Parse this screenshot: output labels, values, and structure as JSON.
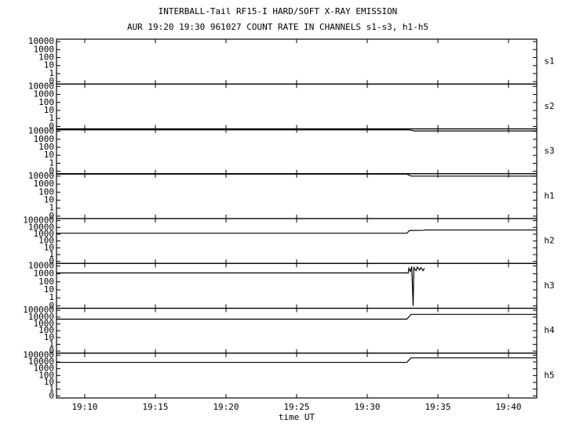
{
  "chart_data": [
    {
      "type": "line",
      "title": "INTERBALL-Tail RF15-I HARD/SOFT X-RAY EMISSION",
      "subtitle": "AUR 19:20 19:30 961027  COUNT RATE IN CHANNELS s1-s3, h1-h5",
      "name": "s1",
      "log_scale": true,
      "color": "#000000",
      "xlim": [
        1148,
        1182
      ],
      "xticks": [
        {
          "value": 1150,
          "label": "19:10"
        },
        {
          "value": 1155,
          "label": "19:15"
        },
        {
          "value": 1160,
          "label": "19:20"
        },
        {
          "value": 1165,
          "label": "19:25"
        },
        {
          "value": 1170,
          "label": "19:30"
        },
        {
          "value": 1175,
          "label": "19:35"
        },
        {
          "value": 1180,
          "label": "19:40"
        }
      ],
      "ylim": [
        0.05,
        20000
      ],
      "yticks": [
        {
          "value": 0.1,
          "label": "0"
        },
        1,
        10,
        100,
        1000,
        10000
      ],
      "x": [],
      "values": []
    },
    {
      "type": "line",
      "name": "s2",
      "log_scale": true,
      "color": "#000000",
      "xlim": [
        1148,
        1182
      ],
      "xticks": [
        {
          "value": 1150,
          "label": "19:10"
        },
        {
          "value": 1155,
          "label": "19:15"
        },
        {
          "value": 1160,
          "label": "19:20"
        },
        {
          "value": 1165,
          "label": "19:25"
        },
        {
          "value": 1170,
          "label": "19:30"
        },
        {
          "value": 1175,
          "label": "19:35"
        },
        {
          "value": 1180,
          "label": "19:40"
        }
      ],
      "ylim": [
        0.05,
        20000
      ],
      "yticks": [
        {
          "value": 0.1,
          "label": "0"
        },
        1,
        10,
        100,
        1000,
        10000
      ],
      "x": [],
      "values": []
    },
    {
      "type": "line",
      "name": "s3",
      "log_scale": true,
      "color": "#000000",
      "xlim": [
        1148,
        1182
      ],
      "xticks": [
        {
          "value": 1150,
          "label": "19:10"
        },
        {
          "value": 1155,
          "label": "19:15"
        },
        {
          "value": 1160,
          "label": "19:20"
        },
        {
          "value": 1165,
          "label": "19:25"
        },
        {
          "value": 1170,
          "label": "19:30"
        },
        {
          "value": 1175,
          "label": "19:35"
        },
        {
          "value": 1180,
          "label": "19:40"
        }
      ],
      "ylim": [
        0.05,
        20000
      ],
      "yticks": [
        {
          "value": 0.1,
          "label": "0"
        },
        1,
        10,
        100,
        1000,
        10000
      ],
      "x": [
        1148,
        1173,
        1173.3,
        1182
      ],
      "values": [
        15000,
        15000,
        11000,
        11000
      ]
    },
    {
      "type": "line",
      "name": "h1",
      "log_scale": true,
      "color": "#000000",
      "xlim": [
        1148,
        1182
      ],
      "xticks": [
        {
          "value": 1150,
          "label": "19:10"
        },
        {
          "value": 1155,
          "label": "19:15"
        },
        {
          "value": 1160,
          "label": "19:20"
        },
        {
          "value": 1165,
          "label": "19:25"
        },
        {
          "value": 1170,
          "label": "19:30"
        },
        {
          "value": 1175,
          "label": "19:35"
        },
        {
          "value": 1180,
          "label": "19:40"
        }
      ],
      "ylim": [
        0.05,
        20000
      ],
      "yticks": [
        {
          "value": 0.1,
          "label": "0"
        },
        1,
        10,
        100,
        1000,
        10000
      ],
      "x": [
        1148,
        1172.8,
        1173.1,
        1182
      ],
      "values": [
        18000,
        18000,
        10000,
        10000
      ]
    },
    {
      "type": "line",
      "name": "h2",
      "log_scale": true,
      "color": "#000000",
      "xlim": [
        1148,
        1182
      ],
      "xticks": [
        {
          "value": 1150,
          "label": "19:10"
        },
        {
          "value": 1155,
          "label": "19:15"
        },
        {
          "value": 1160,
          "label": "19:20"
        },
        {
          "value": 1165,
          "label": "19:25"
        },
        {
          "value": 1170,
          "label": "19:30"
        },
        {
          "value": 1175,
          "label": "19:35"
        },
        {
          "value": 1180,
          "label": "19:40"
        }
      ],
      "ylim": [
        0.05,
        200000
      ],
      "yticks": [
        {
          "value": 0.1,
          "label": "0"
        },
        1,
        10,
        100,
        1000,
        10000,
        100000
      ],
      "x": [
        1148,
        1172.8,
        1173.0,
        1174.0,
        1174.1,
        1182
      ],
      "values": [
        1400,
        1400,
        3500,
        3800,
        4200,
        4200
      ]
    },
    {
      "type": "line",
      "name": "h3",
      "log_scale": true,
      "color": "#000000",
      "xlim": [
        1148,
        1182
      ],
      "xticks": [
        {
          "value": 1150,
          "label": "19:10"
        },
        {
          "value": 1155,
          "label": "19:15"
        },
        {
          "value": 1160,
          "label": "19:20"
        },
        {
          "value": 1165,
          "label": "19:25"
        },
        {
          "value": 1170,
          "label": "19:30"
        },
        {
          "value": 1175,
          "label": "19:35"
        },
        {
          "value": 1180,
          "label": "19:40"
        }
      ],
      "ylim": [
        0.05,
        20000
      ],
      "yticks": [
        {
          "value": 0.1,
          "label": "0"
        },
        1,
        10,
        100,
        1000,
        10000
      ],
      "x": [
        1148,
        1172.9,
        1172.95,
        1173.05,
        1173.15,
        1173.25,
        1173.3,
        1173.45,
        1173.55,
        1173.7,
        1173.8,
        1173.95,
        1174.05
      ],
      "values": [
        1300,
        1300,
        5000,
        2000,
        8000,
        0.1,
        6000,
        2500,
        7000,
        3000,
        6000,
        2500,
        5000
      ]
    },
    {
      "type": "line",
      "name": "h4",
      "log_scale": true,
      "color": "#000000",
      "xlim": [
        1148,
        1182
      ],
      "xticks": [
        {
          "value": 1150,
          "label": "19:10"
        },
        {
          "value": 1155,
          "label": "19:15"
        },
        {
          "value": 1160,
          "label": "19:20"
        },
        {
          "value": 1165,
          "label": "19:25"
        },
        {
          "value": 1170,
          "label": "19:30"
        },
        {
          "value": 1175,
          "label": "19:35"
        },
        {
          "value": 1180,
          "label": "19:40"
        }
      ],
      "ylim": [
        0.05,
        200000
      ],
      "yticks": [
        {
          "value": 0.1,
          "label": "0"
        },
        1,
        10,
        100,
        1000,
        10000,
        100000
      ],
      "x": [
        1148,
        1172.8,
        1173.1,
        1182
      ],
      "values": [
        5000,
        5000,
        25000,
        25000
      ]
    },
    {
      "type": "line",
      "name": "h5",
      "log_scale": true,
      "color": "#000000",
      "xlabel": "time UT",
      "xlim": [
        1148,
        1182
      ],
      "xticks": [
        {
          "value": 1150,
          "label": "19:10"
        },
        {
          "value": 1155,
          "label": "19:15"
        },
        {
          "value": 1160,
          "label": "19:20"
        },
        {
          "value": 1165,
          "label": "19:25"
        },
        {
          "value": 1170,
          "label": "19:30"
        },
        {
          "value": 1175,
          "label": "19:35"
        },
        {
          "value": 1180,
          "label": "19:40"
        }
      ],
      "ylim": [
        0.05,
        200000
      ],
      "yticks": [
        {
          "value": 0.1,
          "label": "0"
        },
        1,
        10,
        100,
        1000,
        10000,
        100000
      ],
      "x": [
        1148,
        1172.8,
        1173.1,
        1182
      ],
      "values": [
        8700,
        8700,
        40000,
        40000
      ]
    }
  ]
}
